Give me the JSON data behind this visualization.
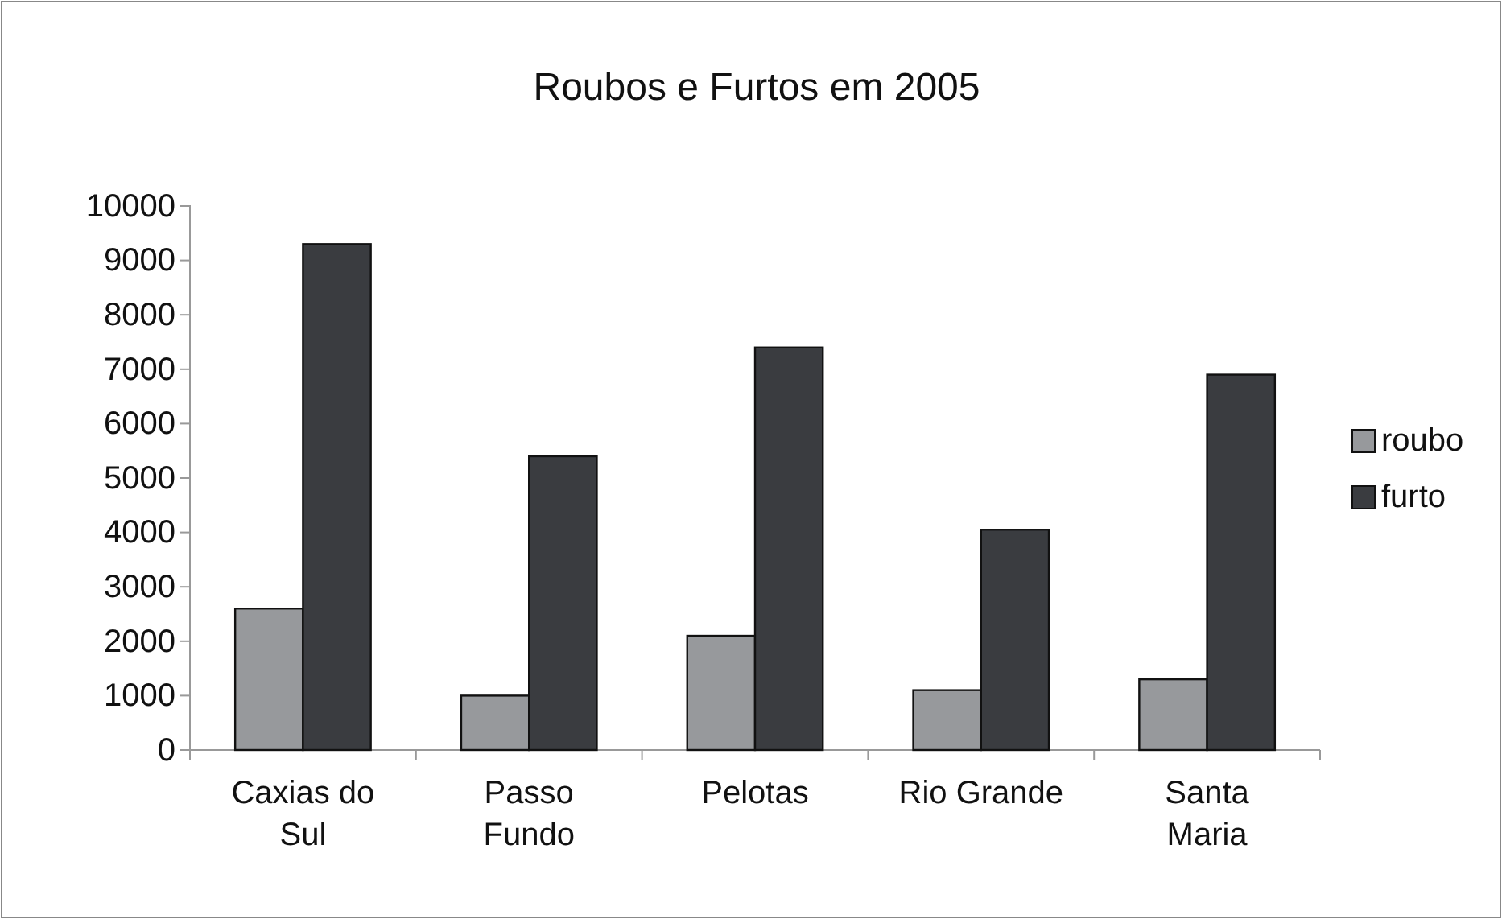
{
  "chart_data": {
    "type": "bar",
    "title": "Roubos e Furtos em 2005",
    "categories": [
      "Caxias do Sul",
      "Passo Fundo",
      "Pelotas",
      "Rio Grande",
      "Santa Maria"
    ],
    "series": [
      {
        "name": "roubo",
        "color": "#97999c",
        "values": [
          2600,
          1000,
          2100,
          1100,
          1300
        ]
      },
      {
        "name": "furto",
        "color": "#3a3c40",
        "values": [
          9300,
          5400,
          7400,
          4050,
          6900
        ]
      }
    ],
    "ylim": [
      0,
      10000
    ],
    "yticks": [
      0,
      1000,
      2000,
      3000,
      4000,
      5000,
      6000,
      7000,
      8000,
      9000,
      10000
    ],
    "legend": "right",
    "grid": false
  }
}
